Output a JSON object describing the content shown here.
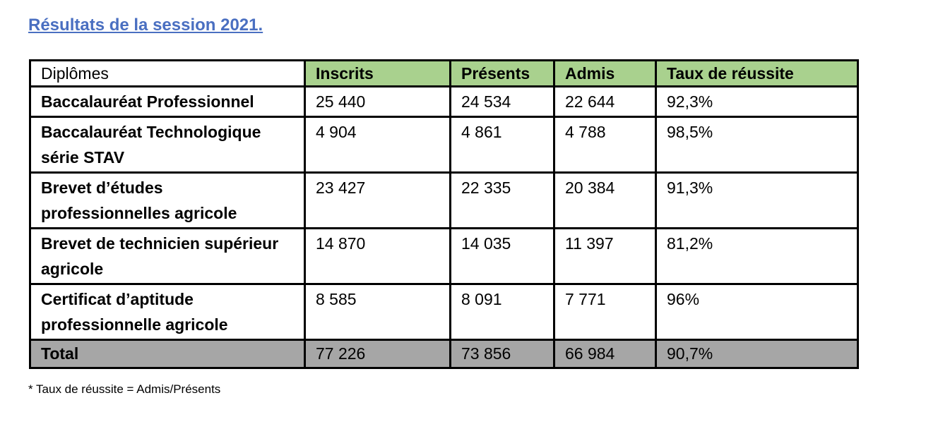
{
  "title": "Résultats de la session 2021.",
  "table": {
    "header": [
      "Diplômes",
      "Inscrits",
      "Présents",
      "Admis",
      "Taux de réussite"
    ],
    "rows": [
      [
        "Baccalauréat  Professionnel",
        "25 440",
        "24 534",
        "22 644",
        "92,3%"
      ],
      [
        "Baccalauréat Technologique série STAV",
        "4 904",
        "4 861",
        "4 788",
        "98,5%"
      ],
      [
        "Brevet d’études professionnelles agricole",
        "23 427",
        "22 335",
        "20 384",
        "91,3%"
      ],
      [
        "Brevet de technicien supérieur agricole",
        "14 870",
        "14 035",
        "11 397",
        "81,2%"
      ],
      [
        "Certificat d’aptitude professionnelle agricole",
        "8 585",
        "8 091",
        "7 771",
        "96%"
      ]
    ],
    "total": [
      "Total",
      "77 226",
      "73 856",
      "66 984",
      "90,7%"
    ]
  },
  "footnote": "* Taux de réussite = Admis/Présents"
}
